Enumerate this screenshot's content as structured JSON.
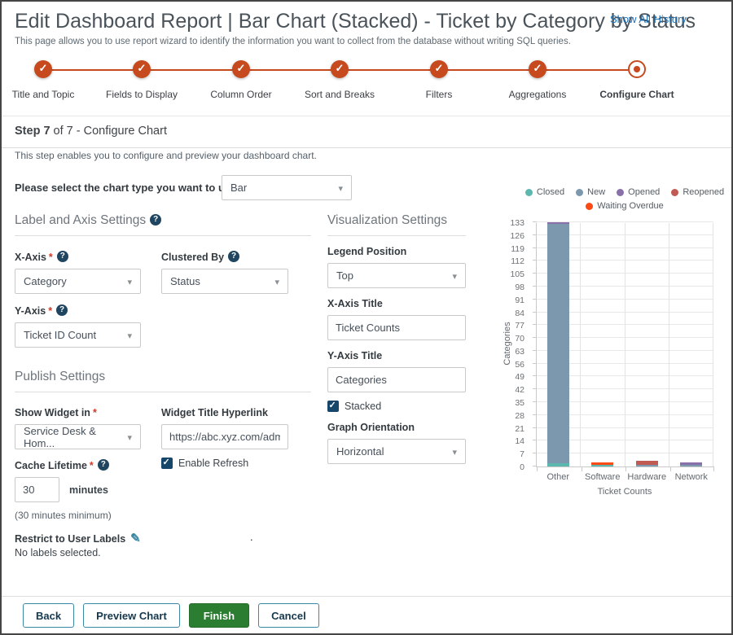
{
  "header": {
    "title": "Edit Dashboard Report | Bar Chart (Stacked) - Ticket by Category by Status",
    "history_link": "Show All History",
    "subtitle": "This page allows you to use report wizard to identify the information you want to collect from the database without writing SQL queries."
  },
  "stepper": {
    "steps": [
      {
        "label": "Title and Topic",
        "state": "complete"
      },
      {
        "label": "Fields to Display",
        "state": "complete"
      },
      {
        "label": "Column Order",
        "state": "complete"
      },
      {
        "label": "Sort and Breaks",
        "state": "complete"
      },
      {
        "label": "Filters",
        "state": "complete"
      },
      {
        "label": "Aggregations",
        "state": "complete"
      },
      {
        "label": "Configure Chart",
        "state": "current"
      }
    ]
  },
  "step_heading": {
    "prefix": "Step 7",
    "rest": " of 7 - Configure Chart"
  },
  "intro": "This step enables you to configure and preview your dashboard chart.",
  "chart_type": {
    "label": "Please select the chart type you want to use",
    "value": "Bar"
  },
  "label_axis": {
    "title": "Label and Axis Settings",
    "x_axis": {
      "label": "X-Axis",
      "required": "*",
      "value": "Category"
    },
    "clustered_by": {
      "label": "Clustered By",
      "value": "Status"
    },
    "y_axis": {
      "label": "Y-Axis",
      "required": "*",
      "value": "Ticket ID Count"
    }
  },
  "visualization": {
    "title": "Visualization Settings",
    "legend_position": {
      "label": "Legend Position",
      "value": "Top"
    },
    "x_axis_title": {
      "label": "X-Axis Title",
      "value": "Ticket Counts"
    },
    "y_axis_title": {
      "label": "Y-Axis Title",
      "value": "Categories"
    },
    "stacked": {
      "label": "Stacked",
      "checked": true
    },
    "graph_orientation": {
      "label": "Graph Orientation",
      "value": "Horizontal"
    }
  },
  "publish": {
    "title": "Publish Settings",
    "show_widget_in": {
      "label": "Show Widget in",
      "required": "*",
      "value": "Service Desk & Hom..."
    },
    "widget_title_hyperlink": {
      "label": "Widget Title Hyperlink",
      "value": "https://abc.xyz.com/admin"
    },
    "enable_refresh": {
      "label": "Enable Refresh",
      "checked": true
    },
    "cache_lifetime": {
      "label": "Cache Lifetime",
      "required": "*",
      "value": "30",
      "unit": "minutes",
      "hint": "(30 minutes minimum)"
    },
    "restrict_labels": {
      "label": "Restrict to User Labels",
      "status": "No labels selected."
    }
  },
  "misc": {
    "stray_dot": "."
  },
  "footer": {
    "back": "Back",
    "preview": "Preview Chart",
    "finish": "Finish",
    "cancel": "Cancel"
  },
  "colors": {
    "accent_orange": "#c64a1e",
    "finish_green": "#2b7e31",
    "link_blue": "#1d72b8",
    "checkbox_navy": "#17466b"
  },
  "chart_data": {
    "type": "bar",
    "stacked": true,
    "title": "",
    "categories": [
      "Other",
      "Software",
      "Hardware",
      "Network"
    ],
    "series": [
      {
        "name": "Closed",
        "color": "#5cb8ae",
        "values": [
          2,
          0.7,
          0,
          0
        ]
      },
      {
        "name": "New",
        "color": "#7b98ae",
        "values": [
          130,
          0,
          1,
          1
        ]
      },
      {
        "name": "Opened",
        "color": "#8a70a9",
        "values": [
          1,
          0,
          0,
          1.3
        ]
      },
      {
        "name": "Reopened",
        "color": "#c05a52",
        "values": [
          0,
          0,
          2,
          0
        ]
      },
      {
        "name": "Waiting Overdue",
        "color": "#fb4a16",
        "values": [
          0,
          1.5,
          0,
          0
        ]
      }
    ],
    "xlabel": "Ticket Counts",
    "ylabel": "Categories",
    "ylim": [
      0,
      133
    ],
    "ytick_step": 7,
    "legend_position": "top",
    "grid": true
  }
}
